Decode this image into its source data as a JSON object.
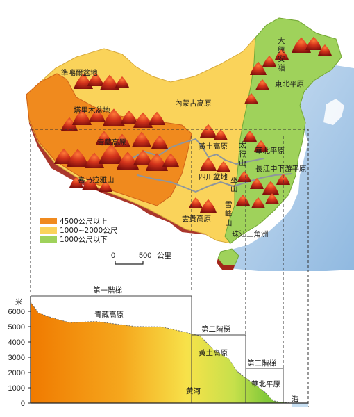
{
  "colors": {
    "sea": "#a9c9e8",
    "high": "#f08a1e",
    "mid": "#fad35a",
    "low": "#9fd25b",
    "mountain": "#b3261e",
    "river": "#8d969e"
  },
  "legend": {
    "items": [
      {
        "label": "4500公尺以上",
        "color": "#f08a1e"
      },
      {
        "label": "1000~2000公尺",
        "color": "#fad35a"
      },
      {
        "label": "1000公尺以下",
        "color": "#9fd25b"
      }
    ]
  },
  "scale": {
    "zero": "0",
    "distance": "500",
    "unit": "公里"
  },
  "map_labels": {
    "junggar": "準噶爾盆地",
    "tarim": "塔里木盆地",
    "inner_mongolia": "內蒙古高原",
    "qinghai_tibet": "青藏高原",
    "himalaya": "喜马拉雅山",
    "loess": "黃土高原",
    "sichuan": "四川盆地",
    "yungui": "雲貴高原",
    "north_china": "華北平原",
    "yangtze": "長江中下游平原",
    "pearl": "珠江三角洲",
    "northeast": "東北平原"
  },
  "vertical_labels": {
    "xingan": "大興安嶺",
    "taihang": "太行山",
    "wushan": "巫山",
    "xuefeng": "雪峰山"
  },
  "profile": {
    "unit": "米",
    "steps": [
      "第一階梯",
      "第二階梯",
      "第三階梯"
    ],
    "labels": {
      "qinghai_tibet": "青藏高原",
      "loess": "黃土高原",
      "north_china": "華北平原",
      "sea": "海",
      "yellow_river": "黃河"
    }
  },
  "chart_data": {
    "type": "area",
    "title": "",
    "xlabel": "",
    "ylabel": "米",
    "ylim": [
      0,
      7000
    ],
    "yticks": [
      0,
      1000,
      2000,
      3000,
      4000,
      5000,
      6000
    ],
    "x": [
      0,
      0.03,
      0.08,
      0.15,
      0.25,
      0.4,
      0.5,
      0.6,
      0.65,
      0.7,
      0.76,
      0.79,
      0.82,
      0.86,
      0.9,
      0.93,
      0.96,
      1.0
    ],
    "values": [
      6600,
      5900,
      5500,
      5350,
      5250,
      5100,
      4900,
      4700,
      4300,
      3600,
      2800,
      2200,
      1600,
      1300,
      600,
      150,
      50,
      0
    ]
  }
}
